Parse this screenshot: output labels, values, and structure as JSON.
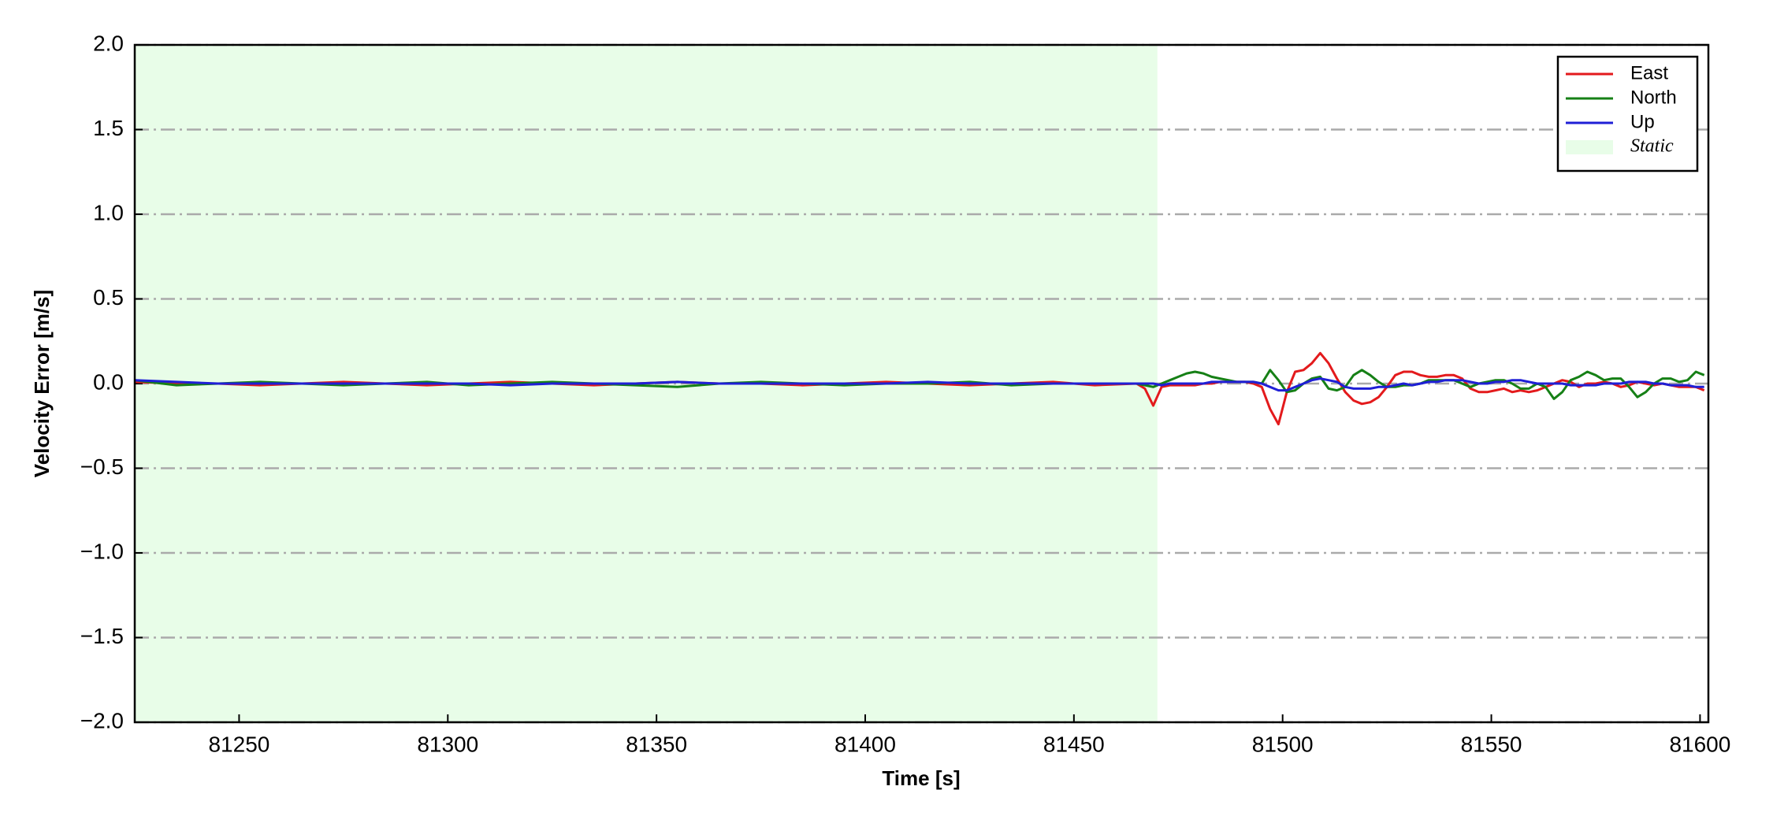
{
  "chart_data": {
    "type": "line",
    "xlabel": "Time [s]",
    "ylabel": "Velocity Error [m/s]",
    "x": [
      81225,
      81235,
      81245,
      81255,
      81265,
      81275,
      81285,
      81295,
      81305,
      81315,
      81325,
      81335,
      81345,
      81355,
      81365,
      81375,
      81385,
      81395,
      81405,
      81415,
      81425,
      81435,
      81445,
      81455,
      81465,
      81467,
      81469,
      81471,
      81473,
      81475,
      81477,
      81479,
      81481,
      81483,
      81485,
      81487,
      81489,
      81491,
      81493,
      81495,
      81497,
      81499,
      81501,
      81503,
      81505,
      81507,
      81509,
      81511,
      81513,
      81515,
      81517,
      81519,
      81521,
      81523,
      81525,
      81527,
      81529,
      81531,
      81533,
      81535,
      81537,
      81539,
      81541,
      81543,
      81545,
      81547,
      81549,
      81551,
      81553,
      81555,
      81557,
      81559,
      81561,
      81563,
      81565,
      81567,
      81569,
      81571,
      81573,
      81575,
      81577,
      81579,
      81581,
      81583,
      81585,
      81587,
      81589,
      81591,
      81593,
      81595,
      81597,
      81599,
      81601
    ],
    "series": [
      {
        "name": "East",
        "color": "#e31a1c",
        "values": [
          0.01,
          0.0,
          0.0,
          -0.01,
          0.0,
          0.01,
          0.0,
          -0.01,
          0.0,
          0.01,
          0.0,
          -0.01,
          0.0,
          0.01,
          0.0,
          0.0,
          -0.01,
          0.0,
          0.01,
          0.0,
          -0.01,
          0.0,
          0.01,
          -0.01,
          0.0,
          -0.03,
          -0.13,
          -0.02,
          -0.01,
          -0.01,
          -0.01,
          -0.01,
          0.0,
          0.0,
          0.01,
          0.01,
          0.01,
          0.01,
          0.0,
          -0.02,
          -0.15,
          -0.24,
          -0.05,
          0.07,
          0.08,
          0.12,
          0.18,
          0.12,
          0.03,
          -0.05,
          -0.1,
          -0.12,
          -0.11,
          -0.08,
          -0.02,
          0.05,
          0.07,
          0.07,
          0.05,
          0.04,
          0.04,
          0.05,
          0.05,
          0.03,
          -0.03,
          -0.05,
          -0.05,
          -0.04,
          -0.03,
          -0.05,
          -0.04,
          -0.05,
          -0.04,
          -0.02,
          0.0,
          0.02,
          0.01,
          -0.02,
          0.0,
          0.0,
          0.01,
          0.0,
          -0.02,
          -0.01,
          0.01,
          0.0,
          -0.01,
          0.0,
          -0.01,
          -0.02,
          -0.02,
          -0.02,
          -0.04
        ]
      },
      {
        "name": "North",
        "color": "#168016",
        "values": [
          0.02,
          -0.01,
          0.0,
          0.01,
          0.0,
          -0.01,
          0.0,
          0.01,
          -0.01,
          0.0,
          0.01,
          0.0,
          -0.01,
          -0.02,
          0.0,
          0.01,
          0.0,
          -0.01,
          0.0,
          0.0,
          0.01,
          -0.01,
          0.0,
          0.0,
          0.0,
          -0.01,
          -0.02,
          0.0,
          0.02,
          0.04,
          0.06,
          0.07,
          0.06,
          0.04,
          0.03,
          0.02,
          0.01,
          0.01,
          0.01,
          0.0,
          0.08,
          0.02,
          -0.05,
          -0.04,
          0.0,
          0.03,
          0.04,
          -0.03,
          -0.04,
          -0.02,
          0.05,
          0.08,
          0.05,
          0.01,
          -0.02,
          -0.02,
          -0.01,
          -0.01,
          0.0,
          0.02,
          0.02,
          0.02,
          0.02,
          0.0,
          -0.02,
          0.0,
          0.01,
          0.02,
          0.02,
          0.0,
          -0.03,
          -0.03,
          0.0,
          -0.02,
          -0.09,
          -0.05,
          0.02,
          0.04,
          0.07,
          0.05,
          0.02,
          0.03,
          0.03,
          -0.02,
          -0.08,
          -0.05,
          0.0,
          0.03,
          0.03,
          0.01,
          0.02,
          0.07,
          0.05
        ]
      },
      {
        "name": "Up",
        "color": "#1f1fd6",
        "values": [
          0.02,
          0.01,
          0.0,
          0.0,
          0.0,
          0.0,
          0.0,
          0.0,
          0.0,
          -0.01,
          0.0,
          0.0,
          0.0,
          0.01,
          0.0,
          0.0,
          0.0,
          0.0,
          0.0,
          0.01,
          0.0,
          0.0,
          0.0,
          0.0,
          0.0,
          0.0,
          0.0,
          -0.01,
          0.0,
          0.0,
          0.0,
          0.0,
          0.0,
          0.01,
          0.01,
          0.01,
          0.01,
          0.01,
          0.01,
          0.0,
          -0.02,
          -0.04,
          -0.04,
          -0.02,
          0.0,
          0.02,
          0.03,
          0.02,
          0.01,
          -0.02,
          -0.03,
          -0.03,
          -0.03,
          -0.02,
          -0.02,
          -0.01,
          0.0,
          -0.01,
          0.0,
          0.01,
          0.01,
          0.02,
          0.02,
          0.02,
          0.01,
          0.0,
          0.0,
          0.01,
          0.01,
          0.02,
          0.02,
          0.01,
          0.0,
          0.0,
          0.0,
          0.0,
          -0.01,
          -0.01,
          -0.01,
          -0.01,
          0.0,
          0.0,
          0.0,
          0.01,
          0.01,
          0.01,
          0.0,
          0.0,
          -0.01,
          -0.01,
          -0.01,
          -0.02,
          -0.02
        ]
      }
    ],
    "spans": [
      {
        "name": "Static",
        "x0": 81225,
        "x1": 81470,
        "color": "#e8fde8"
      }
    ],
    "xlim": [
      81225,
      81602
    ],
    "xticks": [
      81250,
      81300,
      81350,
      81400,
      81450,
      81500,
      81550,
      81600
    ],
    "ylim": [
      -2.0,
      2.0
    ],
    "yticks": [
      {
        "value": -2.0,
        "label": "−2.0"
      },
      {
        "value": -1.5,
        "label": "−1.5"
      },
      {
        "value": -1.0,
        "label": "−1.0"
      },
      {
        "value": -0.5,
        "label": "−0.5"
      },
      {
        "value": 0.0,
        "label": "0.0"
      },
      {
        "value": 0.5,
        "label": "0.5"
      },
      {
        "value": 1.0,
        "label": "1.0"
      },
      {
        "value": 1.5,
        "label": "1.5"
      },
      {
        "value": 2.0,
        "label": "2.0"
      }
    ],
    "grid": true,
    "legend": "upper right"
  }
}
